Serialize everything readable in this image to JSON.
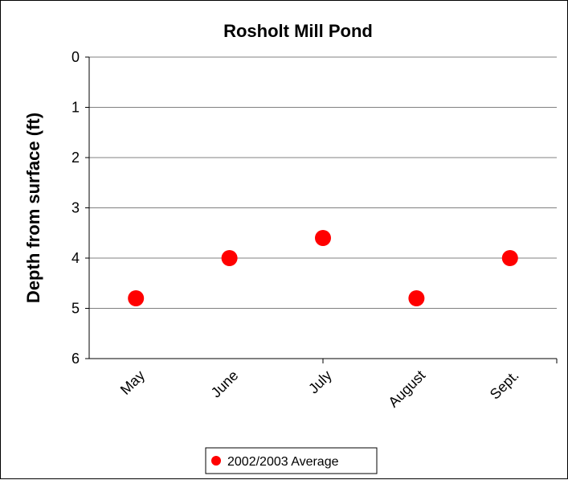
{
  "chart_data": {
    "type": "scatter",
    "title": "Rosholt Mill Pond",
    "xlabel": "",
    "ylabel": "Depth from surface (ft)",
    "categories": [
      "May",
      "June",
      "July",
      "August",
      "Sept."
    ],
    "y_ticks": [
      "0",
      "1",
      "2",
      "3",
      "4",
      "5",
      "6"
    ],
    "ylim": [
      0,
      6
    ],
    "y_inverted": true,
    "grid": true,
    "legend_position": "bottom",
    "series": [
      {
        "name": "2002/2003 Average",
        "color": "#ff0000",
        "values": [
          4.8,
          4.0,
          3.6,
          4.8,
          4.0
        ]
      }
    ]
  }
}
